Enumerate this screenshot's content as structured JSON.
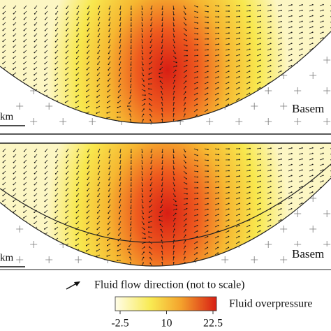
{
  "panels": [
    {
      "basement_label": "Basem",
      "scale_label": "km"
    },
    {
      "basement_label": "Basem",
      "scale_label": "km"
    }
  ],
  "legend": {
    "arrow_label": "Fluid flow direction (not to scale)",
    "colorbar_label": "Fluid overpressure",
    "colorbar_ticks": [
      -2.5,
      10,
      22.5
    ]
  }
}
